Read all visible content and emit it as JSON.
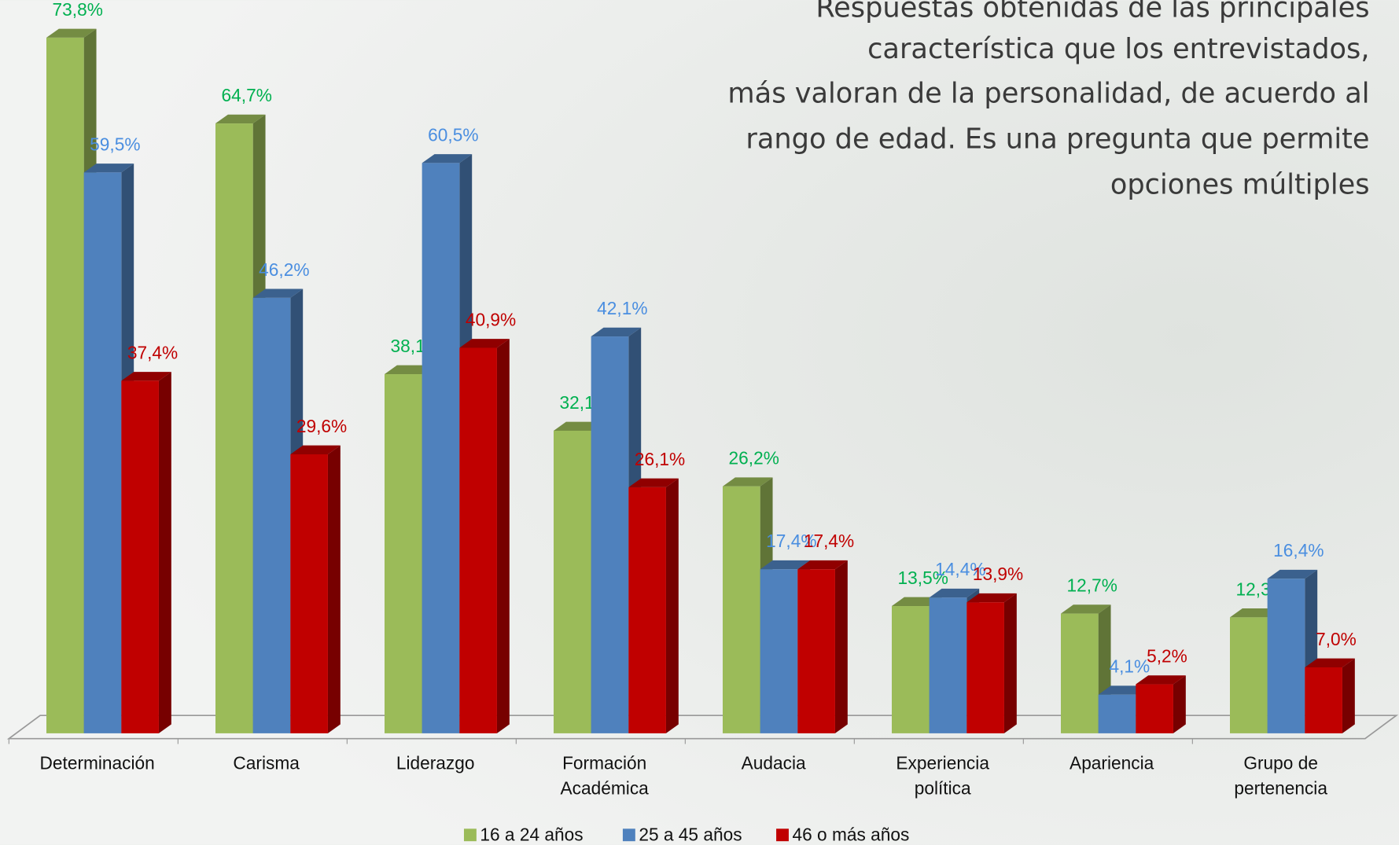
{
  "chart_data": {
    "type": "bar3d",
    "title": [
      "Respuestas obtenidas de las principales",
      "característica que los entrevistados,",
      "más valoran de la personalidad, de acuerdo al",
      "rango de edad. Es una pregunta que permite",
      "opciones múltiples"
    ],
    "categories": [
      [
        "Determinación"
      ],
      [
        "Carisma"
      ],
      [
        "Liderazgo"
      ],
      [
        "Formación",
        "Académica"
      ],
      [
        "Audacia"
      ],
      [
        "Experiencia",
        "política"
      ],
      [
        "Apariencia"
      ],
      [
        "Grupo de",
        "pertenencia"
      ]
    ],
    "series": [
      {
        "name": "16 a 24 años",
        "color": "#9bbb59",
        "label_color": "#00b050",
        "values": [
          73.8,
          64.7,
          38.1,
          32.1,
          26.2,
          13.5,
          12.7,
          12.3
        ],
        "value_labels": [
          "73,8%",
          "64,7%",
          "38,1%",
          "32,1%",
          "26,2%",
          "13,5%",
          "12,7%",
          "12,3%"
        ]
      },
      {
        "name": "25 a 45 años",
        "color": "#4f81bd",
        "label_color": "#4a8ee0",
        "values": [
          59.5,
          46.2,
          60.5,
          42.1,
          17.4,
          14.4,
          4.1,
          16.4
        ],
        "value_labels": [
          "59,5%",
          "46,2%",
          "60,5%",
          "42,1%",
          "17,4%",
          "14,4%",
          "4,1%",
          "16,4%"
        ]
      },
      {
        "name": "46 o más años",
        "color": "#c00000",
        "label_color": "#c00000",
        "values": [
          37.4,
          29.6,
          40.9,
          26.1,
          17.4,
          13.9,
          5.2,
          7.0
        ],
        "value_labels": [
          "37,4%",
          "29,6%",
          "40,9%",
          "26,1%",
          "17,4%",
          "13,9%",
          "5,2%",
          "7,0%"
        ]
      }
    ],
    "legend": "bottom"
  }
}
